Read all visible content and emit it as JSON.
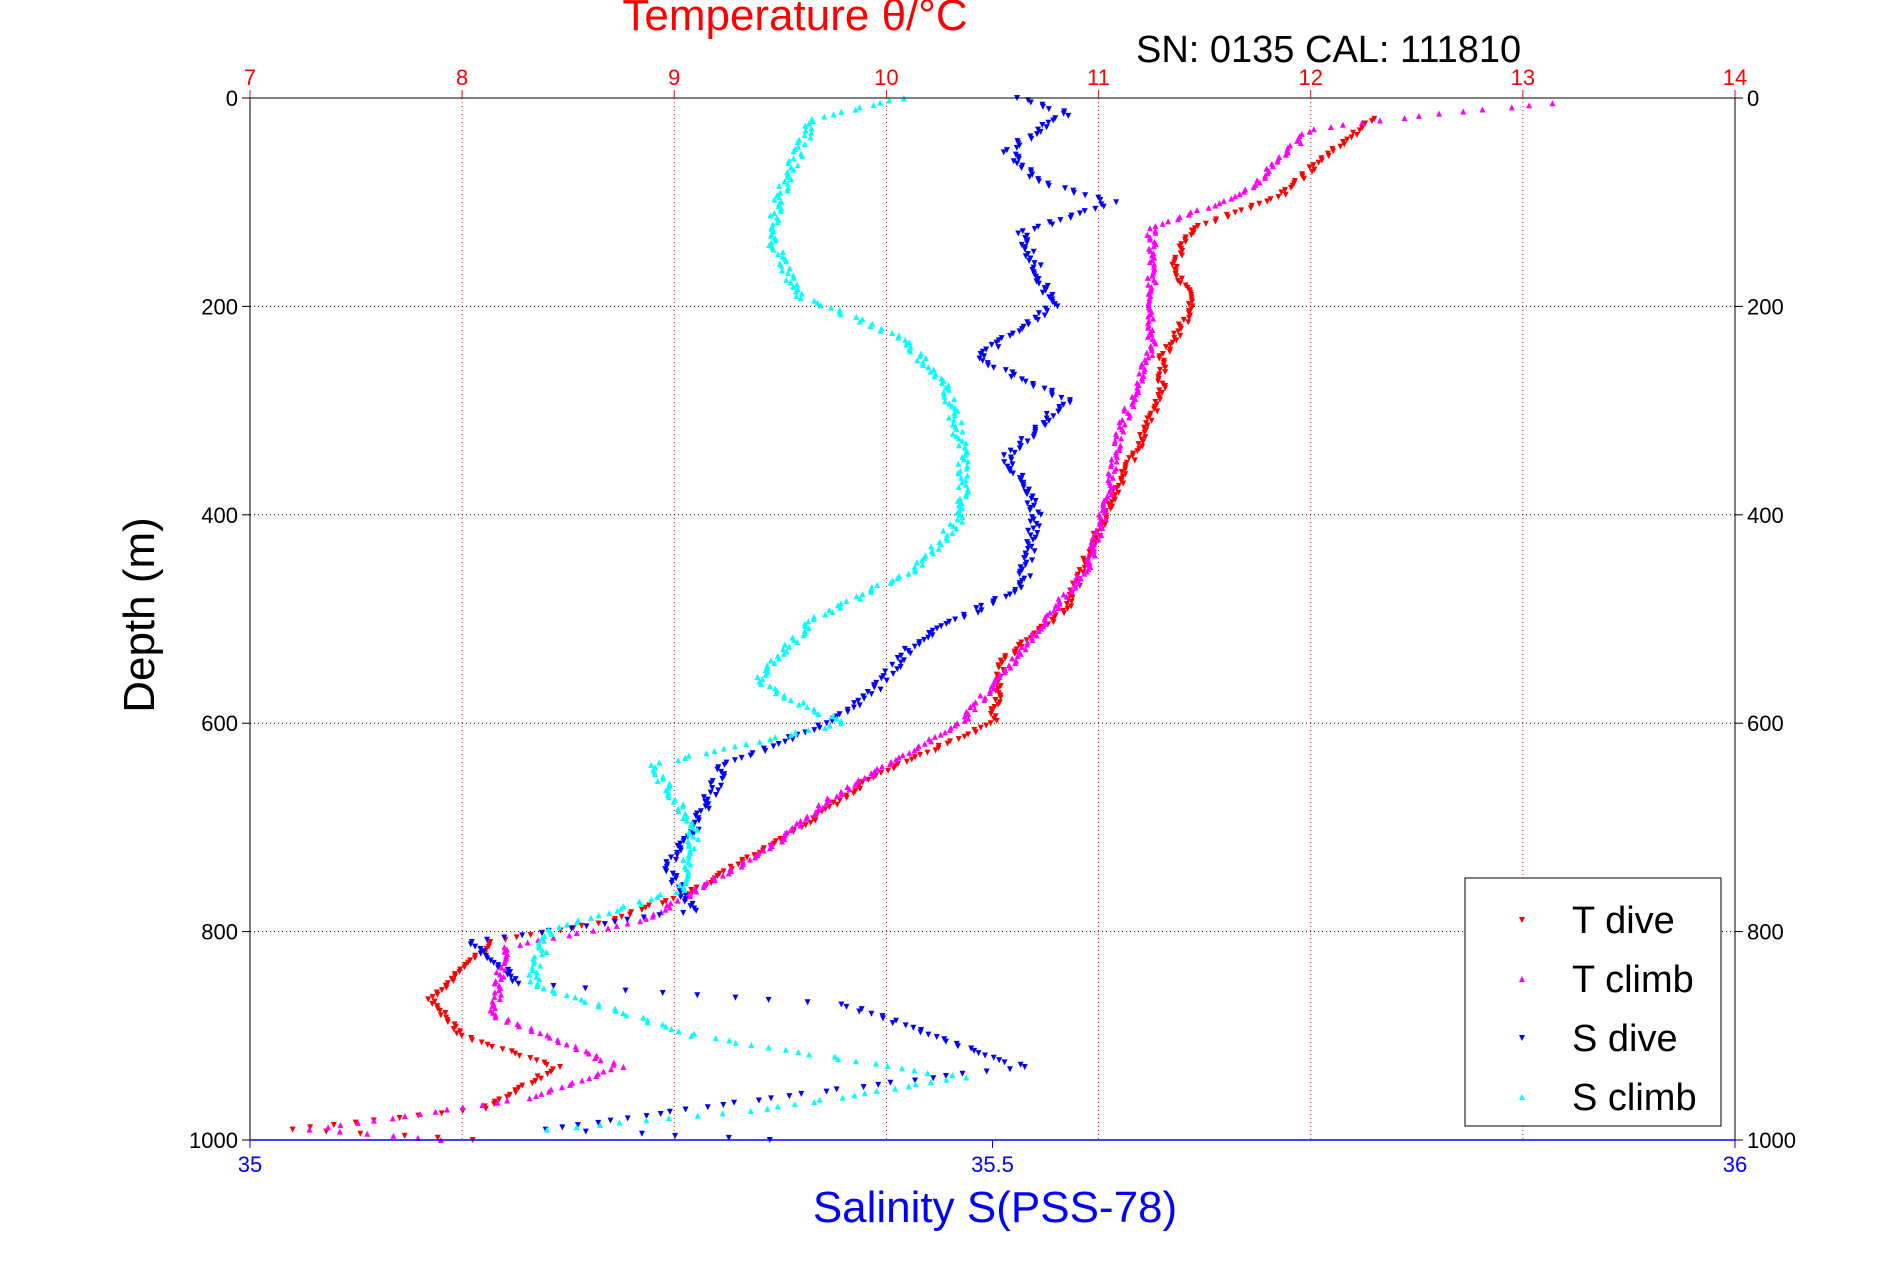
{
  "chart_data": {
    "type": "scatter",
    "title": "Temperature θ/°C",
    "subtitle": "SN: 0135  CAL: 111810",
    "x_top_label": "Temperature θ/°C",
    "x_bottom_label": "Salinity S(PSS-78)",
    "ylabel": "Depth (m)",
    "ylim": [
      0,
      1000
    ],
    "y_reversed": true,
    "y_ticks": [
      "0",
      "200",
      "400",
      "600",
      "800",
      "1000"
    ],
    "x_top_lim": [
      7,
      14
    ],
    "x_top_ticks": [
      "7",
      "8",
      "9",
      "10",
      "11",
      "12",
      "13",
      "14"
    ],
    "x_bottom_lim": [
      35,
      36
    ],
    "x_bottom_ticks": [
      "35",
      "35.5",
      "36"
    ],
    "grid": true,
    "legend_position": "bottom-right",
    "colors": {
      "t_dive": "#ff0000",
      "t_climb": "#ff00ff",
      "s_dive": "#0000ff",
      "s_climb": "#00ffff",
      "temperature_axis": "#ff0000",
      "salinity_axis": "#0000ff"
    },
    "series": [
      {
        "name": "T dive",
        "axis": "temperature",
        "marker": "triangle-down",
        "points": [
          [
            12.3,
            20
          ],
          [
            12.05,
            60
          ],
          [
            11.85,
            95
          ],
          [
            11.45,
            125
          ],
          [
            11.35,
            160
          ],
          [
            11.45,
            200
          ],
          [
            11.3,
            250
          ],
          [
            11.3,
            285
          ],
          [
            11.2,
            330
          ],
          [
            11.05,
            390
          ],
          [
            10.95,
            440
          ],
          [
            10.85,
            490
          ],
          [
            10.55,
            540
          ],
          [
            10.5,
            600
          ],
          [
            9.95,
            650
          ],
          [
            9.6,
            700
          ],
          [
            9.1,
            760
          ],
          [
            8.7,
            790
          ],
          [
            8.15,
            810
          ],
          [
            7.85,
            865
          ],
          [
            8.0,
            900
          ],
          [
            8.45,
            930
          ],
          [
            8.1,
            970
          ],
          [
            7.2,
            990
          ],
          [
            8.05,
            1000
          ]
        ]
      },
      {
        "name": "T climb",
        "axis": "temperature",
        "marker": "triangle-up",
        "points": [
          [
            13.15,
            5
          ],
          [
            12.6,
            15
          ],
          [
            12.0,
            30
          ],
          [
            11.7,
            90
          ],
          [
            11.25,
            125
          ],
          [
            11.25,
            190
          ],
          [
            11.25,
            240
          ],
          [
            11.1,
            320
          ],
          [
            11.05,
            380
          ],
          [
            10.95,
            450
          ],
          [
            10.6,
            540
          ],
          [
            10.35,
            600
          ],
          [
            9.75,
            670
          ],
          [
            9.45,
            720
          ],
          [
            8.85,
            790
          ],
          [
            8.2,
            815
          ],
          [
            8.15,
            880
          ],
          [
            8.75,
            930
          ],
          [
            8.3,
            960
          ],
          [
            7.3,
            990
          ],
          [
            7.9,
            1000
          ]
        ]
      },
      {
        "name": "S dive",
        "axis": "salinity",
        "marker": "triangle-down",
        "points": [
          [
            35.52,
            0
          ],
          [
            35.55,
            15
          ],
          [
            35.51,
            50
          ],
          [
            35.53,
            80
          ],
          [
            35.58,
            100
          ],
          [
            35.52,
            130
          ],
          [
            35.54,
            200
          ],
          [
            35.49,
            250
          ],
          [
            35.55,
            290
          ],
          [
            35.51,
            345
          ],
          [
            35.53,
            400
          ],
          [
            35.52,
            470
          ],
          [
            35.45,
            520
          ],
          [
            35.42,
            570
          ],
          [
            35.39,
            600
          ],
          [
            35.32,
            640
          ],
          [
            35.3,
            700
          ],
          [
            35.28,
            740
          ],
          [
            35.3,
            780
          ],
          [
            35.15,
            810
          ],
          [
            35.18,
            850
          ],
          [
            35.4,
            870
          ],
          [
            35.52,
            930
          ],
          [
            35.35,
            960
          ],
          [
            35.2,
            990
          ],
          [
            35.35,
            1000
          ]
        ]
      },
      {
        "name": "S climb",
        "axis": "salinity",
        "marker": "triangle-up",
        "points": [
          [
            35.44,
            0
          ],
          [
            35.38,
            20
          ],
          [
            35.36,
            80
          ],
          [
            35.35,
            130
          ],
          [
            35.37,
            190
          ],
          [
            35.44,
            230
          ],
          [
            35.47,
            280
          ],
          [
            35.48,
            340
          ],
          [
            35.48,
            400
          ],
          [
            35.45,
            450
          ],
          [
            35.38,
            500
          ],
          [
            35.34,
            560
          ],
          [
            35.4,
            600
          ],
          [
            35.27,
            640
          ],
          [
            35.3,
            700
          ],
          [
            35.29,
            760
          ],
          [
            35.2,
            800
          ],
          [
            35.19,
            850
          ],
          [
            35.3,
            900
          ],
          [
            35.48,
            940
          ],
          [
            35.35,
            970
          ],
          [
            35.2,
            990
          ]
        ]
      }
    ]
  }
}
